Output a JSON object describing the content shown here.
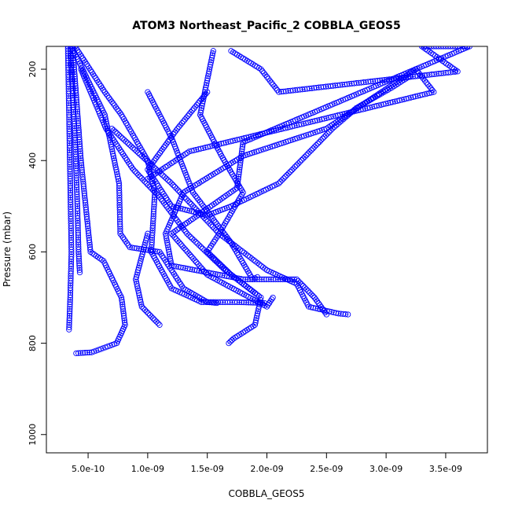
{
  "chart_data": {
    "type": "scatter",
    "title": "ATOM3 Northeast_Pacific_2 COBBLA_GEOS5",
    "xlabel": "COBBLA_GEOS5",
    "ylabel": "Pressure (mbar)",
    "xlim": [
      1.5e-10,
      3.85e-09
    ],
    "ylim": [
      1040,
      150
    ],
    "y_inverted": true,
    "grid": false,
    "legend": "none",
    "marker": "open-circle",
    "x_ticks": [
      {
        "value": 5e-10,
        "label": "5.0e-10"
      },
      {
        "value": 1e-09,
        "label": "1.0e-09"
      },
      {
        "value": 1.5e-09,
        "label": "1.5e-09"
      },
      {
        "value": 2e-09,
        "label": "2.0e-09"
      },
      {
        "value": 2.5e-09,
        "label": "2.5e-09"
      },
      {
        "value": 3e-09,
        "label": "3.0e-09"
      },
      {
        "value": 3.5e-09,
        "label": "3.5e-09"
      }
    ],
    "y_ticks": [
      {
        "value": 200,
        "label": "200"
      },
      {
        "value": 400,
        "label": "400"
      },
      {
        "value": 600,
        "label": "600"
      },
      {
        "value": 800,
        "label": "800"
      },
      {
        "value": 1000,
        "label": "1000"
      }
    ],
    "series": [
      {
        "values": [
          [
            3.3e-10,
            150
          ],
          [
            3.4e-10,
            300
          ],
          [
            3.5e-10,
            450
          ],
          [
            3.6e-10,
            600
          ],
          [
            3.5e-10,
            700
          ],
          [
            3.4e-10,
            770
          ]
        ]
      },
      {
        "values": [
          [
            3.5e-10,
            150
          ],
          [
            3.9e-10,
            350
          ],
          [
            4.1e-10,
            500
          ],
          [
            4.2e-10,
            600
          ],
          [
            4.3e-10,
            645
          ]
        ]
      },
      {
        "values": [
          [
            3.7e-10,
            150
          ],
          [
            4.4e-10,
            400
          ],
          [
            5.2e-10,
            600
          ],
          [
            6.3e-10,
            620
          ],
          [
            7.8e-10,
            700
          ],
          [
            8.1e-10,
            760
          ],
          [
            7.4e-10,
            800
          ],
          [
            5.3e-10,
            820
          ],
          [
            4e-10,
            822
          ]
        ]
      },
      {
        "values": [
          [
            3.6e-10,
            150
          ],
          [
            6.4e-10,
            300
          ],
          [
            7.6e-10,
            450
          ],
          [
            7.7e-10,
            560
          ],
          [
            8.5e-10,
            590
          ],
          [
            1.1e-09,
            600
          ],
          [
            1.3e-09,
            680
          ],
          [
            1.5e-09,
            710
          ],
          [
            1.58e-09,
            712
          ]
        ]
      },
      {
        "values": [
          [
            3.9e-10,
            150
          ],
          [
            6.4e-10,
            250
          ],
          [
            7.8e-10,
            300
          ],
          [
            1e-09,
            400
          ],
          [
            1.06e-09,
            470
          ],
          [
            1.03e-09,
            600
          ],
          [
            1.2e-09,
            680
          ],
          [
            1.45e-09,
            710
          ],
          [
            1.75e-09,
            710
          ],
          [
            1.98e-09,
            712
          ]
        ]
      },
      {
        "values": [
          [
            4.4e-10,
            200
          ],
          [
            6.5e-10,
            330
          ],
          [
            8.8e-10,
            420
          ],
          [
            1.1e-09,
            480
          ],
          [
            1.33e-09,
            560
          ],
          [
            1.65e-09,
            640
          ],
          [
            1.95e-09,
            700
          ],
          [
            1.9e-09,
            760
          ],
          [
            1.72e-09,
            790
          ],
          [
            1.68e-09,
            800
          ]
        ]
      },
      {
        "values": [
          [
            7e-10,
            330
          ],
          [
            1.2e-09,
            450
          ],
          [
            1.6e-09,
            560
          ],
          [
            2e-09,
            640
          ],
          [
            2.25e-09,
            670
          ],
          [
            2.35e-09,
            720
          ],
          [
            2.6e-09,
            735
          ],
          [
            2.68e-09,
            737
          ]
        ]
      },
      {
        "values": [
          [
            1e-09,
            250
          ],
          [
            1.2e-09,
            350
          ],
          [
            1.38e-09,
            470
          ],
          [
            1.7e-09,
            580
          ],
          [
            1.88e-09,
            660
          ],
          [
            1.92e-09,
            655
          ]
        ]
      },
      {
        "values": [
          [
            1.55e-09,
            160
          ],
          [
            1.44e-09,
            300
          ],
          [
            1.62e-09,
            390
          ],
          [
            1.8e-09,
            470
          ],
          [
            1.6e-09,
            560
          ],
          [
            1.5e-09,
            600
          ],
          [
            1.7e-09,
            650
          ],
          [
            1.9e-09,
            690
          ]
        ]
      },
      {
        "values": [
          [
            1.7e-09,
            160
          ],
          [
            1.95e-09,
            200
          ],
          [
            2.1e-09,
            250
          ],
          [
            3.6e-09,
            205
          ],
          [
            3.3e-09,
            150
          ],
          [
            3.7e-09,
            150
          ],
          [
            1.8e-09,
            360
          ],
          [
            1.75e-09,
            460
          ],
          [
            1.2e-09,
            560
          ],
          [
            1.5e-09,
            650
          ],
          [
            2e-09,
            720
          ],
          [
            2.05e-09,
            700
          ]
        ]
      },
      {
        "values": [
          [
            1e-09,
            440
          ],
          [
            1.35e-09,
            380
          ],
          [
            3.4e-09,
            250
          ],
          [
            3.25e-09,
            200
          ],
          [
            2.5e-09,
            330
          ],
          [
            1.8e-09,
            390
          ],
          [
            1.3e-09,
            470
          ],
          [
            1.15e-09,
            560
          ],
          [
            1.2e-09,
            630
          ],
          [
            1.8e-09,
            660
          ],
          [
            2.25e-09,
            660
          ],
          [
            2.4e-09,
            700
          ],
          [
            2.5e-09,
            737
          ]
        ]
      },
      {
        "values": [
          [
            1e-09,
            560
          ],
          [
            9e-10,
            660
          ],
          [
            9.5e-10,
            720
          ],
          [
            1.1e-09,
            760
          ]
        ]
      },
      {
        "values": [
          [
            1.5e-09,
            250
          ],
          [
            1.25e-09,
            330
          ],
          [
            1e-09,
            420
          ],
          [
            1.2e-09,
            500
          ],
          [
            1.5e-09,
            520
          ],
          [
            1.7e-09,
            500
          ],
          [
            2.1e-09,
            450
          ],
          [
            2.55e-09,
            330
          ],
          [
            2.75e-09,
            285
          ],
          [
            3.05e-09,
            240
          ],
          [
            3.2e-09,
            215
          ]
        ]
      }
    ]
  }
}
